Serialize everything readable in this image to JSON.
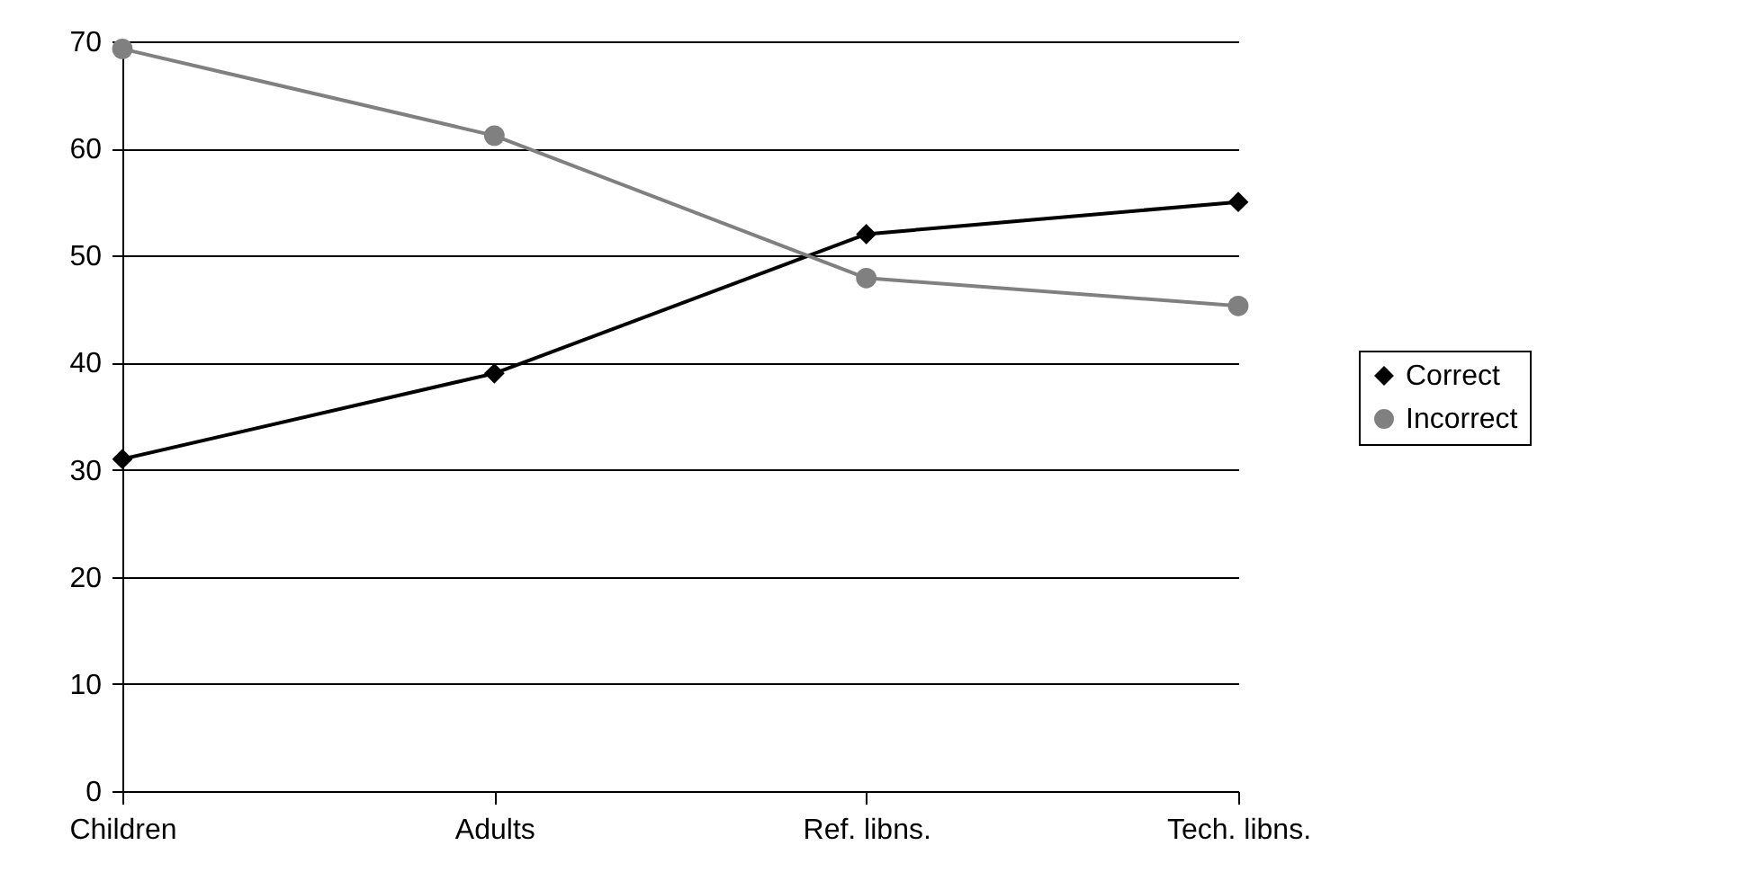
{
  "chart_data": {
    "type": "line",
    "categories": [
      "Children",
      "Adults",
      "Ref. libns.",
      "Tech. libns."
    ],
    "series": [
      {
        "name": "Correct",
        "color": "#000000",
        "marker": "diamond",
        "values": [
          31,
          39,
          52,
          55
        ]
      },
      {
        "name": "Incorrect",
        "color": "#808080",
        "marker": "circle",
        "values": [
          69.3,
          61.2,
          47.9,
          45.3
        ]
      }
    ],
    "ylim": [
      0,
      70
    ],
    "yticks": [
      0,
      10,
      20,
      30,
      40,
      50,
      60,
      70
    ],
    "grid": "y",
    "legend": "right",
    "line_style": "solid"
  }
}
